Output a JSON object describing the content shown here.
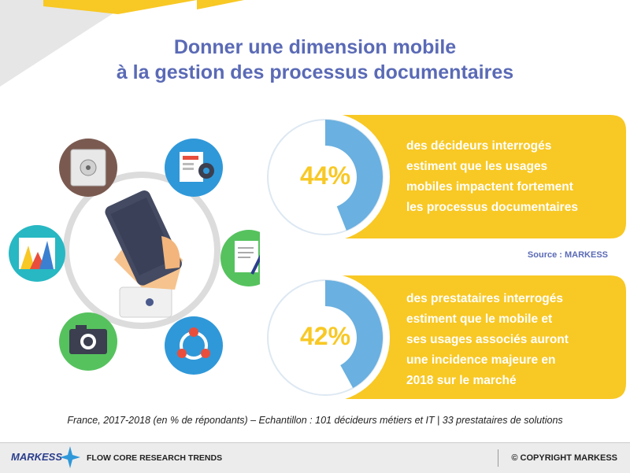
{
  "title": {
    "line1": "Donner une dimension mobile",
    "line2": "à la gestion des processus documentaires"
  },
  "chart_data": [
    {
      "type": "pie",
      "value_pct": 44,
      "label": "44%",
      "description": [
        "des décideurs interrogés",
        "estiment que les usages",
        "mobiles impactent fortement",
        "les processus documentaires"
      ]
    },
    {
      "type": "pie",
      "value_pct": 42,
      "label": "42%",
      "description": [
        "des prestataires interrogés",
        "estiment que le mobile et",
        "ses usages associés auront",
        "une incidence majeure en",
        "2018 sur le marché"
      ]
    }
  ],
  "source": "Source : MARKESS",
  "footnote": "France, 2017-2018 (en % de répondants) – Echantillon : 101 décideurs métiers et IT | 33 prestataires de solutions",
  "footer": {
    "brand": "MARKESS",
    "subtitle": "FLOW CORE RESEARCH TRENDS",
    "copyright": "© COPYRIGHT MARKESS"
  },
  "colors": {
    "title": "#5a6ab6",
    "ring": "#6ab0e0",
    "accent": "#f8c824"
  },
  "icons": [
    "safe-icon",
    "document-gear-icon",
    "chart-icon",
    "contract-pen-icon",
    "camera-icon",
    "share-icon",
    "smartphone-hand-icon"
  ]
}
